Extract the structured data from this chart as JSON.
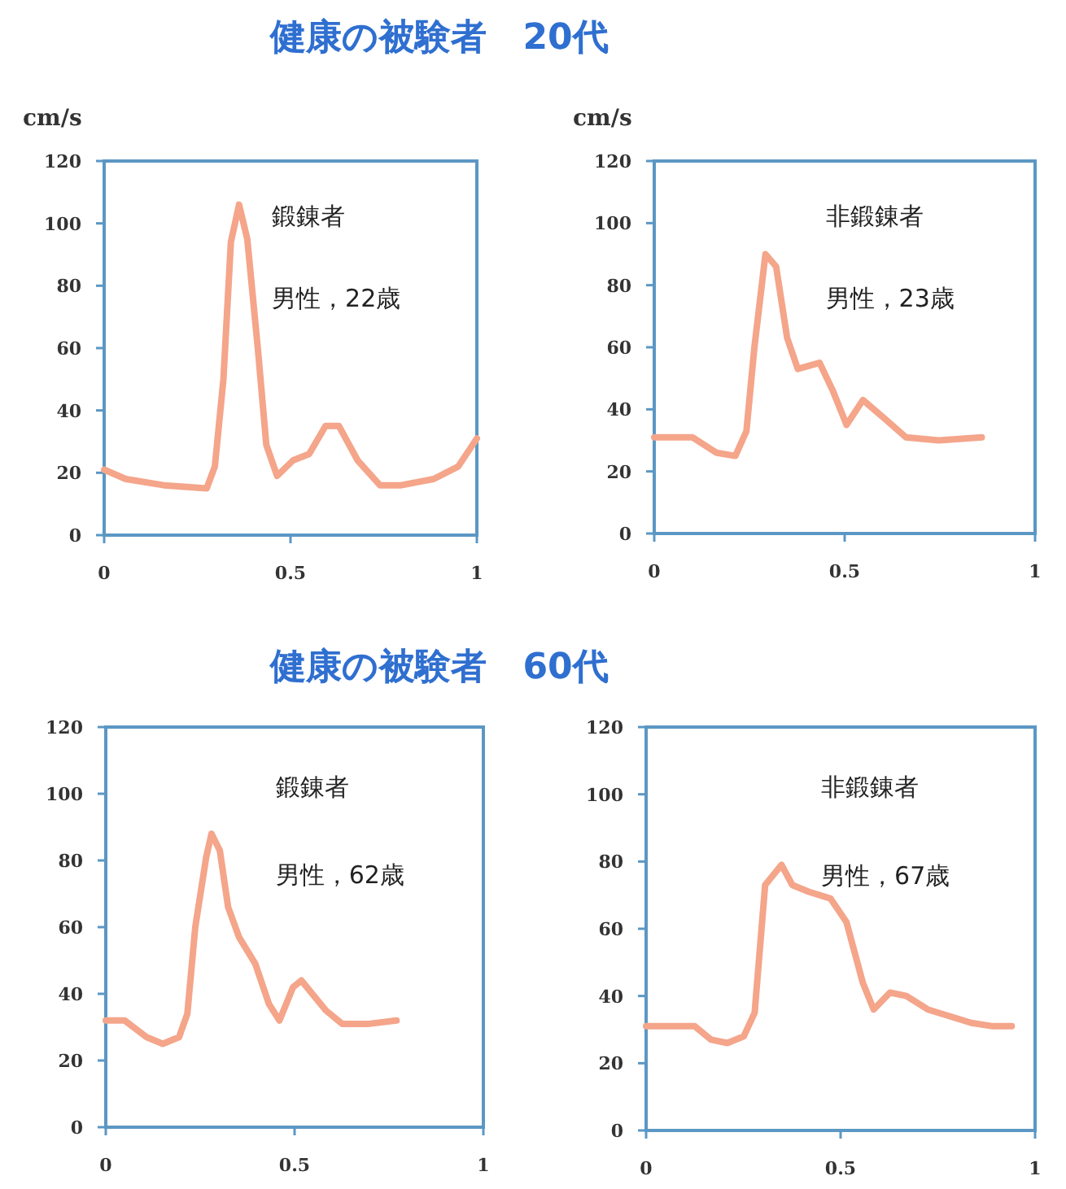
{
  "chart_data": [
    {
      "type": "line",
      "title": "健康の被験者　20代",
      "ylabel": "cm/s",
      "annotations": [
        "鍛錬者",
        "男性，22歳"
      ],
      "xlim": [
        0,
        1
      ],
      "xticks": [
        0,
        0.5,
        1
      ],
      "ylim": [
        0,
        120
      ],
      "yticks": [
        0,
        20,
        40,
        60,
        80,
        100,
        120
      ],
      "grid": false,
      "marker": "none",
      "line_style": "solid",
      "series": [
        {
          "color": "#f4a58a",
          "x": [
            0,
            0.058,
            0.16,
            0.275,
            0.297,
            0.32,
            0.34,
            0.362,
            0.384,
            0.413,
            0.435,
            0.464,
            0.507,
            0.55,
            0.594,
            0.63,
            0.68,
            0.74,
            0.797,
            0.884,
            0.95,
            1.0
          ],
          "values": [
            21,
            18,
            16,
            15,
            22,
            50,
            94,
            106,
            95,
            59,
            29,
            19,
            24,
            26,
            35,
            35,
            24,
            16,
            16,
            18,
            22,
            31
          ]
        }
      ]
    },
    {
      "type": "line",
      "ylabel": "cm/s",
      "annotations": [
        "非鍛錬者",
        "男性，23歳"
      ],
      "xlim": [
        0,
        1
      ],
      "xticks": [
        0,
        0.5,
        1
      ],
      "ylim": [
        0,
        120
      ],
      "yticks": [
        0,
        20,
        40,
        60,
        80,
        100,
        120
      ],
      "grid": false,
      "marker": "none",
      "line_style": "solid",
      "series": [
        {
          "color": "#f4a58a",
          "x": [
            0,
            0.1,
            0.164,
            0.213,
            0.242,
            0.263,
            0.292,
            0.32,
            0.349,
            0.377,
            0.434,
            0.469,
            0.505,
            0.548,
            0.605,
            0.661,
            0.747,
            0.86
          ],
          "values": [
            31,
            31,
            26,
            25,
            33,
            60,
            90,
            86,
            63,
            53,
            55,
            46,
            35,
            43,
            37,
            31,
            30,
            31
          ]
        }
      ]
    },
    {
      "type": "line",
      "title": "健康の被験者　60代",
      "annotations": [
        "鍛錬者",
        "男性，62歳"
      ],
      "xlim": [
        0,
        1
      ],
      "xticks": [
        0,
        0.5,
        1
      ],
      "ylim": [
        0,
        120
      ],
      "yticks": [
        0,
        20,
        40,
        60,
        80,
        100,
        120
      ],
      "grid": false,
      "marker": "none",
      "line_style": "solid",
      "series": [
        {
          "color": "#f4a58a",
          "x": [
            0,
            0.05,
            0.108,
            0.151,
            0.194,
            0.216,
            0.237,
            0.266,
            0.28,
            0.302,
            0.324,
            0.353,
            0.396,
            0.432,
            0.46,
            0.496,
            0.518,
            0.583,
            0.626,
            0.698,
            0.77
          ],
          "values": [
            32,
            32,
            27,
            25,
            27,
            34,
            60,
            81,
            88,
            83,
            66,
            57,
            49,
            37,
            32,
            42,
            44,
            35,
            31,
            31,
            32
          ]
        }
      ]
    },
    {
      "type": "line",
      "annotations": [
        "非鍛錬者",
        "男性，67歳"
      ],
      "xlim": [
        0,
        1
      ],
      "xticks": [
        0,
        0.5,
        1
      ],
      "ylim": [
        0,
        120
      ],
      "yticks": [
        0,
        20,
        40,
        60,
        80,
        100,
        120
      ],
      "grid": false,
      "marker": "none",
      "line_style": "solid",
      "series": [
        {
          "color": "#f4a58a",
          "x": [
            0,
            0.125,
            0.167,
            0.209,
            0.251,
            0.279,
            0.306,
            0.348,
            0.376,
            0.418,
            0.474,
            0.515,
            0.557,
            0.585,
            0.627,
            0.669,
            0.724,
            0.78,
            0.836,
            0.891,
            0.94
          ],
          "values": [
            31,
            31,
            27,
            26,
            28,
            35,
            73,
            79,
            73,
            71,
            69,
            62,
            44,
            36,
            41,
            40,
            36,
            34,
            32,
            31,
            31
          ]
        }
      ]
    }
  ]
}
